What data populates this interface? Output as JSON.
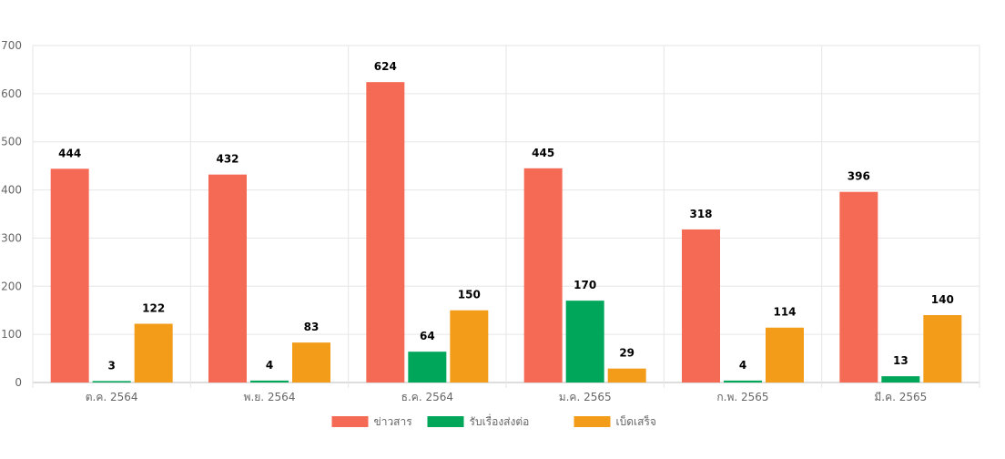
{
  "chart_data": {
    "type": "bar",
    "categories": [
      "ต.ค. 2564",
      "พ.ย. 2564",
      "ธ.ค. 2564",
      "ม.ค. 2565",
      "ก.พ. 2565",
      "มี.ค. 2565"
    ],
    "series": [
      {
        "name": "ข่าวสาร",
        "color": "#f46a55",
        "values": [
          444,
          432,
          624,
          445,
          318,
          396
        ]
      },
      {
        "name": "รับเรื่องส่งต่อ",
        "color": "#00a65a",
        "values": [
          3,
          4,
          64,
          170,
          4,
          13
        ]
      },
      {
        "name": "เบ็ดเสร็จ",
        "color": "#f39c1a",
        "values": [
          122,
          83,
          150,
          29,
          114,
          140
        ]
      }
    ],
    "ylim": [
      0,
      700
    ],
    "yticks": [
      0,
      100,
      200,
      300,
      400,
      500,
      600,
      700
    ],
    "grid": true,
    "legend_position": "bottom",
    "data_labels": true
  }
}
